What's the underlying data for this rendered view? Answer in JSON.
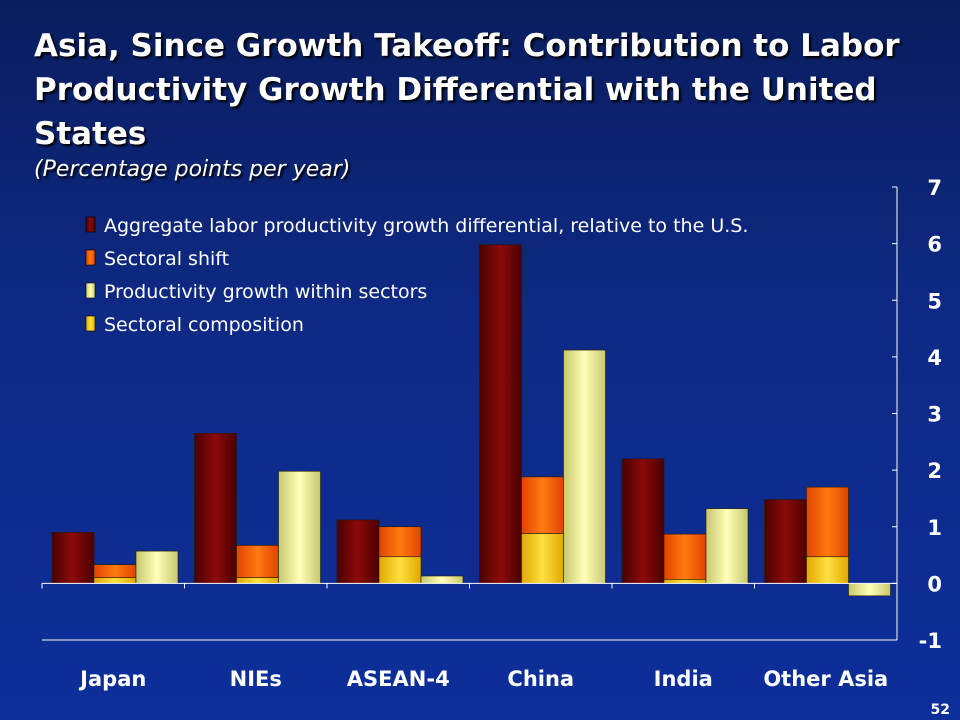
{
  "title": "Asia, Since Growth Takeoff: Contribution to Labor Productivity Growth Differential with the United States",
  "subtitle": "(Percentage points per year)",
  "page_number": "52",
  "chart_data": {
    "type": "bar",
    "title": "Asia, Since Growth Takeoff: Contribution to Labor Productivity Growth Differential with the United States",
    "subtitle": "(Percentage points per year)",
    "categories": [
      "Japan",
      "NIEs",
      "ASEAN-4",
      "China",
      "India",
      "Other Asia"
    ],
    "series": [
      {
        "name": "Aggregate labor productivity growth differential, relative to the U.S.",
        "color": "#7a0000",
        "values": [
          0.9,
          2.65,
          1.12,
          5.98,
          2.2,
          1.48
        ]
      },
      {
        "name": "Sectoral shift",
        "color": "#ff6a00",
        "values": [
          0.33,
          0.67,
          1.0,
          1.88,
          0.87,
          1.7
        ]
      },
      {
        "name": "Productivity growth within sectors",
        "color": "#ffffa0",
        "values": [
          0.57,
          1.98,
          0.13,
          4.12,
          1.32,
          -0.22
        ]
      },
      {
        "name": "Sectoral composition",
        "color": "#ffd400",
        "values": [
          0.1,
          0.1,
          0.47,
          0.88,
          0.07,
          0.47
        ]
      }
    ],
    "stack": {
      "base_series": "Sectoral composition",
      "stacked_on": "Sectoral shift"
    },
    "ylim": [
      -1,
      7
    ],
    "yticks": [
      "-1",
      "0",
      "1",
      "2",
      "3",
      "4",
      "5",
      "6",
      "7"
    ],
    "y_axis_side": "right",
    "grid": false,
    "legend_position": "top-left",
    "xlabel": "",
    "ylabel": ""
  }
}
